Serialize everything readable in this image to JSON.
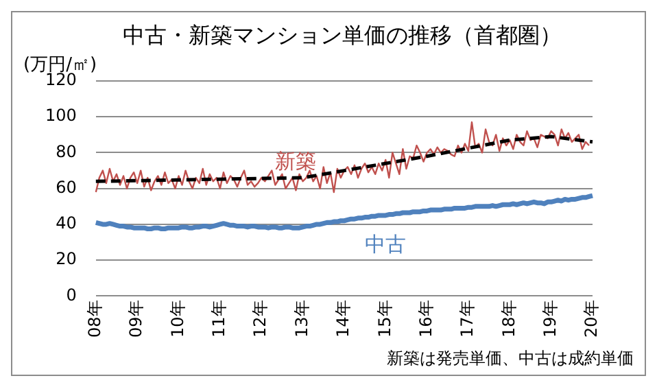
{
  "chart_data": {
    "type": "line",
    "title": "中古・新築マンション単価の推移（首都圏）",
    "ylabel": "(万円/㎡)",
    "annotations": [
      "新築は発売単価、中古は成約単価"
    ],
    "categories": [
      "08年",
      null,
      null,
      null,
      null,
      null,
      null,
      null,
      null,
      null,
      null,
      null,
      "09年",
      null,
      null,
      null,
      null,
      null,
      null,
      null,
      null,
      null,
      null,
      null,
      "10年",
      null,
      null,
      null,
      null,
      null,
      null,
      null,
      null,
      null,
      null,
      null,
      "11年",
      null,
      null,
      null,
      null,
      null,
      null,
      null,
      null,
      null,
      null,
      null,
      "12年",
      null,
      null,
      null,
      null,
      null,
      null,
      null,
      null,
      null,
      null,
      null,
      "13年",
      null,
      null,
      null,
      null,
      null,
      null,
      null,
      null,
      null,
      null,
      null,
      "14年",
      null,
      null,
      null,
      null,
      null,
      null,
      null,
      null,
      null,
      null,
      null,
      "15年",
      null,
      null,
      null,
      null,
      null,
      null,
      null,
      null,
      null,
      null,
      null,
      "16年",
      null,
      null,
      null,
      null,
      null,
      null,
      null,
      null,
      null,
      null,
      null,
      "17年",
      null,
      null,
      null,
      null,
      null,
      null,
      null,
      null,
      null,
      null,
      null,
      "18年",
      null,
      null,
      null,
      null,
      null,
      null,
      null,
      null,
      null,
      null,
      null,
      "19年",
      null,
      null,
      null,
      null,
      null,
      null,
      null,
      null,
      null,
      null,
      null,
      "20年"
    ],
    "series": [
      {
        "name": "新築",
        "color": "#c0504d",
        "values": [
          58,
          66,
          70,
          63,
          71,
          64,
          68,
          62,
          67,
          60,
          66,
          69,
          63,
          70,
          61,
          66,
          59,
          64,
          67,
          62,
          69,
          63,
          65,
          60,
          67,
          62,
          70,
          64,
          60,
          66,
          63,
          71,
          62,
          68,
          64,
          66,
          60,
          69,
          63,
          67,
          65,
          61,
          66,
          70,
          62,
          64,
          61,
          63,
          66,
          64,
          67,
          70,
          62,
          65,
          68,
          60,
          63,
          66,
          59,
          68,
          64,
          66,
          70,
          64,
          67,
          60,
          72,
          63,
          69,
          58,
          71,
          66,
          70,
          72,
          68,
          73,
          66,
          71,
          74,
          69,
          72,
          68,
          74,
          70,
          76,
          66,
          80,
          74,
          68,
          82,
          71,
          78,
          77,
          84,
          80,
          75,
          80,
          82,
          79,
          83,
          80,
          82,
          81,
          79,
          78,
          84,
          80,
          85,
          81,
          97,
          83,
          85,
          80,
          93,
          86,
          84,
          90,
          81,
          88,
          84,
          87,
          82,
          90,
          86,
          84,
          92,
          87,
          88,
          83,
          90,
          89,
          88,
          92,
          90,
          84,
          93,
          88,
          91,
          86,
          88,
          90,
          82,
          86,
          84,
          null
        ]
      },
      {
        "name": "中古",
        "color": "#4f81bd",
        "values": [
          41,
          40.5,
          40,
          40,
          40.5,
          40,
          39.5,
          39,
          39,
          38.5,
          38.5,
          38,
          38,
          38,
          38,
          37.5,
          37.5,
          38,
          38,
          37.5,
          37.5,
          38,
          38,
          38,
          38,
          38.5,
          38.5,
          38,
          38,
          38.5,
          38.5,
          39,
          39,
          38.5,
          39,
          39.5,
          40,
          40.5,
          40,
          39.5,
          39.5,
          39,
          39,
          39,
          38.5,
          39,
          39,
          38.5,
          38.5,
          38.5,
          38,
          38.5,
          38.5,
          38,
          38,
          38.5,
          38.5,
          38,
          38,
          38,
          38.5,
          39,
          39,
          39.5,
          40,
          40,
          40.5,
          41,
          41,
          41.5,
          41.5,
          42,
          42,
          42.5,
          43,
          43,
          43.5,
          43.5,
          44,
          44,
          44.5,
          44.5,
          45,
          45,
          45,
          45.5,
          45.5,
          46,
          46,
          46.5,
          46.5,
          46.5,
          47,
          47,
          47,
          47.5,
          47.5,
          48,
          48,
          48,
          48,
          48.5,
          48.5,
          48.5,
          49,
          49,
          49,
          49,
          49.5,
          49.5,
          50,
          50,
          50,
          50,
          50,
          50.5,
          50,
          50.5,
          51,
          51,
          51,
          51.5,
          51,
          51.5,
          52,
          51.5,
          52,
          52.5,
          52,
          52,
          51.5,
          52.5,
          52.5,
          53,
          53.5,
          53,
          54,
          53.5,
          54,
          54,
          54.5,
          55,
          55,
          55.5,
          56
        ]
      },
      {
        "type": "line",
        "color": "#000000",
        "line_style": "dashed",
        "values": [
          64,
          null,
          null,
          null,
          null,
          null,
          null,
          null,
          null,
          null,
          null,
          null,
          null,
          null,
          null,
          null,
          null,
          null,
          null,
          null,
          null,
          null,
          null,
          null,
          null,
          null,
          null,
          null,
          null,
          null,
          null,
          null,
          null,
          null,
          null,
          null,
          null,
          null,
          null,
          null,
          null,
          null,
          null,
          null,
          null,
          null,
          null,
          null,
          null,
          null,
          null,
          null,
          null,
          null,
          null,
          null,
          null,
          null,
          null,
          null,
          66,
          null,
          null,
          null,
          null,
          null,
          null,
          null,
          null,
          null,
          null,
          null,
          null,
          null,
          null,
          null,
          null,
          null,
          null,
          null,
          null,
          null,
          null,
          null,
          null,
          null,
          null,
          null,
          null,
          null,
          null,
          null,
          null,
          null,
          null,
          null,
          78,
          null,
          null,
          null,
          null,
          null,
          null,
          null,
          null,
          null,
          null,
          null,
          null,
          null,
          null,
          null,
          null,
          null,
          null,
          null,
          null,
          null,
          null,
          null,
          87,
          null,
          null,
          null,
          null,
          null,
          null,
          null,
          null,
          null,
          null,
          null,
          89,
          null,
          null,
          null,
          null,
          null,
          null,
          null,
          null,
          null,
          null,
          null,
          86
        ]
      }
    ],
    "ylim": [
      0,
      120
    ],
    "yticks": [
      0,
      20,
      40,
      60,
      80,
      100,
      120
    ],
    "grid": "y",
    "legend": false,
    "marker": "none"
  }
}
